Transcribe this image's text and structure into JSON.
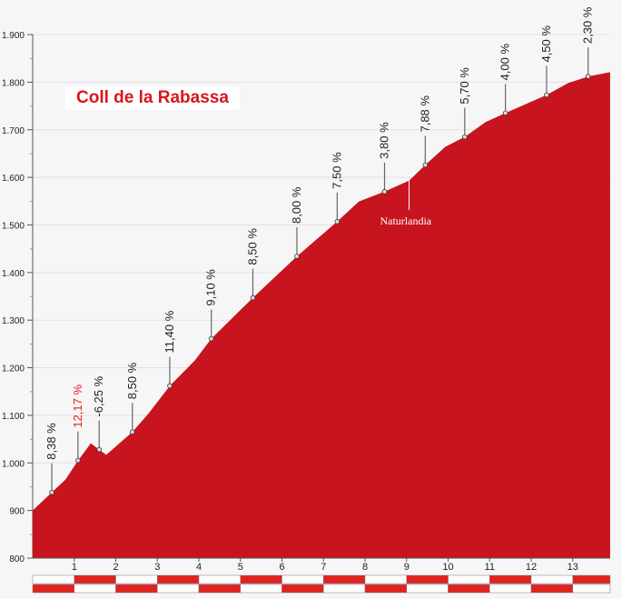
{
  "chart_data": {
    "type": "area",
    "title": "Coll de la Rabassa",
    "xlabel": "",
    "ylabel": "",
    "xlim": [
      0,
      13.9
    ],
    "ylim": [
      800,
      1900
    ],
    "grid": true,
    "x_ticks": [
      "1",
      "2",
      "3",
      "4",
      "5",
      "6",
      "7",
      "8",
      "9",
      "10",
      "11",
      "12",
      "13"
    ],
    "y_ticks": [
      "800",
      "900",
      "1.000",
      "1.100",
      "1.200",
      "1.300",
      "1.400",
      "1.500",
      "1.600",
      "1.700",
      "1.800",
      "1.900"
    ],
    "fill_color": "#c8141e",
    "profile": [
      [
        0,
        900
      ],
      [
        0.46,
        938
      ],
      [
        0.79,
        965
      ],
      [
        1.09,
        1005
      ],
      [
        1.4,
        1041
      ],
      [
        1.6,
        1028
      ],
      [
        1.77,
        1017
      ],
      [
        2.4,
        1065
      ],
      [
        2.8,
        1105
      ],
      [
        3.3,
        1162
      ],
      [
        3.9,
        1215
      ],
      [
        4.3,
        1261
      ],
      [
        5.3,
        1347
      ],
      [
        6.36,
        1434
      ],
      [
        7.33,
        1507
      ],
      [
        7.85,
        1549
      ],
      [
        8.47,
        1570
      ],
      [
        9.06,
        1593
      ],
      [
        9.45,
        1626
      ],
      [
        9.93,
        1664
      ],
      [
        10.4,
        1685
      ],
      [
        10.9,
        1716
      ],
      [
        11.38,
        1735
      ],
      [
        12.37,
        1773
      ],
      [
        12.89,
        1798
      ],
      [
        13.37,
        1812
      ],
      [
        13.9,
        1821
      ]
    ],
    "gradients": [
      {
        "km": 0.46,
        "alt": 938,
        "label": "8,38 %",
        "color": "#222222"
      },
      {
        "km": 1.09,
        "alt": 1005,
        "label": "12,17 %",
        "color": "#e0231f"
      },
      {
        "km": 1.6,
        "alt": 1028,
        "label": "-6,25 %",
        "color": "#222222"
      },
      {
        "km": 2.4,
        "alt": 1065,
        "label": "8,50 %",
        "color": "#222222"
      },
      {
        "km": 3.3,
        "alt": 1162,
        "label": "11,40 %",
        "color": "#222222"
      },
      {
        "km": 4.3,
        "alt": 1261,
        "label": "9,10 %",
        "color": "#222222"
      },
      {
        "km": 5.3,
        "alt": 1347,
        "label": "8,50 %",
        "color": "#222222"
      },
      {
        "km": 6.36,
        "alt": 1434,
        "label": "8,00 %",
        "color": "#222222"
      },
      {
        "km": 7.33,
        "alt": 1507,
        "label": "7,50 %",
        "color": "#222222"
      },
      {
        "km": 8.47,
        "alt": 1570,
        "label": "3,80 %",
        "color": "#222222"
      },
      {
        "km": 9.45,
        "alt": 1626,
        "label": "7,88 %",
        "color": "#222222"
      },
      {
        "km": 10.4,
        "alt": 1685,
        "label": "5,70 %",
        "color": "#222222"
      },
      {
        "km": 11.38,
        "alt": 1735,
        "label": "4,00 %",
        "color": "#222222"
      },
      {
        "km": 12.37,
        "alt": 1773,
        "label": "4,50 %",
        "color": "#222222"
      },
      {
        "km": 13.37,
        "alt": 1812,
        "label": "2,30 %",
        "color": "#222222"
      }
    ],
    "annotations": [
      {
        "km": 9.06,
        "alt": 1593,
        "label": "Naturlandia"
      }
    ]
  }
}
